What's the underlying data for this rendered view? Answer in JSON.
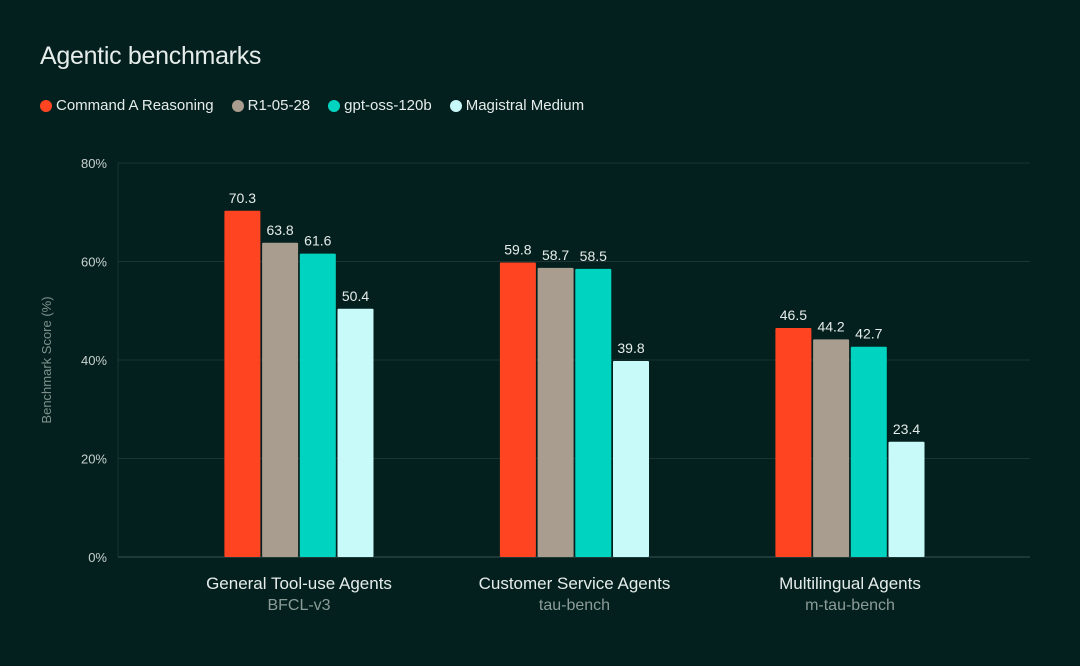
{
  "chart_data": {
    "type": "bar",
    "title": "Agentic benchmarks",
    "ylabel": "Benchmark Score (%)",
    "ylim": [
      0,
      80
    ],
    "yticks": [
      "0%",
      "20%",
      "40%",
      "60%",
      "80%"
    ],
    "grid": true,
    "legend_placement": "top-left",
    "categories": [
      "General Tool-use Agents",
      "Customer Service Agents",
      "Multilingual Agents"
    ],
    "subcategories": [
      "BFCL-v3",
      "tau-bench",
      "m-tau-bench"
    ],
    "series": [
      {
        "name": "Command A Reasoning",
        "color": "#ff4422",
        "values": [
          70.3,
          59.8,
          46.5
        ]
      },
      {
        "name": "R1-05-28",
        "color": "#a89d8e",
        "values": [
          63.8,
          58.7,
          44.2
        ]
      },
      {
        "name": "gpt-oss-120b",
        "color": "#00d4c0",
        "values": [
          61.6,
          58.5,
          42.7
        ]
      },
      {
        "name": "Magistral Medium",
        "color": "#c8fafa",
        "values": [
          50.4,
          39.8,
          23.4
        ]
      }
    ]
  }
}
